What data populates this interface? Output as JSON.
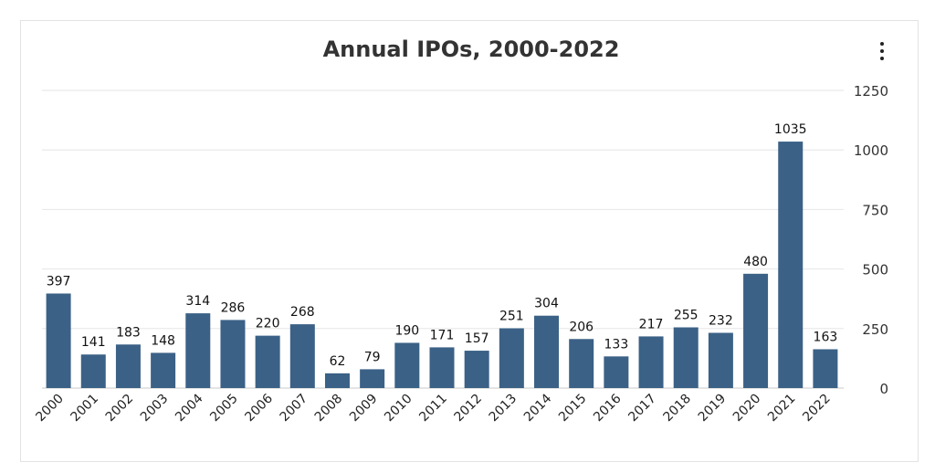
{
  "chart_data": {
    "type": "bar",
    "title": "Annual IPOs, 2000-2022",
    "categories": [
      "2000",
      "2001",
      "2002",
      "2003",
      "2004",
      "2005",
      "2006",
      "2007",
      "2008",
      "2009",
      "2010",
      "2011",
      "2012",
      "2013",
      "2014",
      "2015",
      "2016",
      "2017",
      "2018",
      "2019",
      "2020",
      "2021",
      "2022"
    ],
    "values": [
      397,
      141,
      183,
      148,
      314,
      286,
      220,
      268,
      62,
      79,
      190,
      171,
      157,
      251,
      304,
      206,
      133,
      217,
      255,
      232,
      480,
      1035,
      163
    ],
    "ylim": [
      0,
      1250
    ],
    "yticks": [
      0,
      250,
      500,
      750,
      1000,
      1250
    ],
    "y_axis_position": "right",
    "grid": true,
    "bar_color": "#3b6186",
    "data_labels": true
  },
  "menu": {
    "icon": "more-vertical-icon"
  }
}
